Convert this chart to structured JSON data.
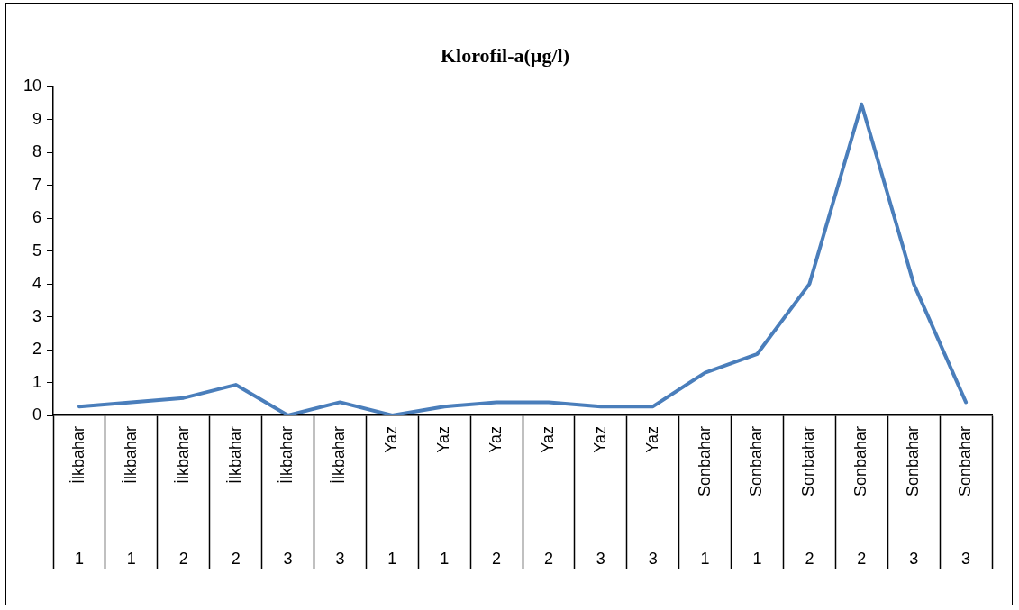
{
  "chart_data": {
    "type": "line",
    "title": "Klorofil-a(µg/l)",
    "categories": [
      "İlkbahar 1",
      "İlkbahar 1",
      "İlkbahar 2",
      "İlkbahar 2",
      "İlkbahar 3",
      "İlkbahar 3",
      "Yaz 1",
      "Yaz 1",
      "Yaz 2",
      "Yaz 2",
      "Yaz 3",
      "Yaz 3",
      "Sonbahar 1",
      "Sonbahar 1",
      "Sonbahar 2",
      "Sonbahar 2",
      "Sonbahar 3",
      "Sonbahar 3"
    ],
    "series": [
      {
        "color": "#4a7ebb",
        "values": [
          0.27,
          0.4,
          0.53,
          0.93,
          0,
          0.4,
          0,
          0.27,
          0.4,
          0.4,
          0.27,
          0.27,
          1.3,
          1.87,
          4.0,
          9.47,
          4.0,
          0.4
        ]
      }
    ],
    "ylim": [
      0,
      10
    ],
    "yticks": [
      0,
      1,
      2,
      3,
      4,
      5,
      6,
      7,
      8,
      9,
      10
    ],
    "grid": false,
    "legend": false,
    "marker": "none",
    "line_style": "solid"
  }
}
